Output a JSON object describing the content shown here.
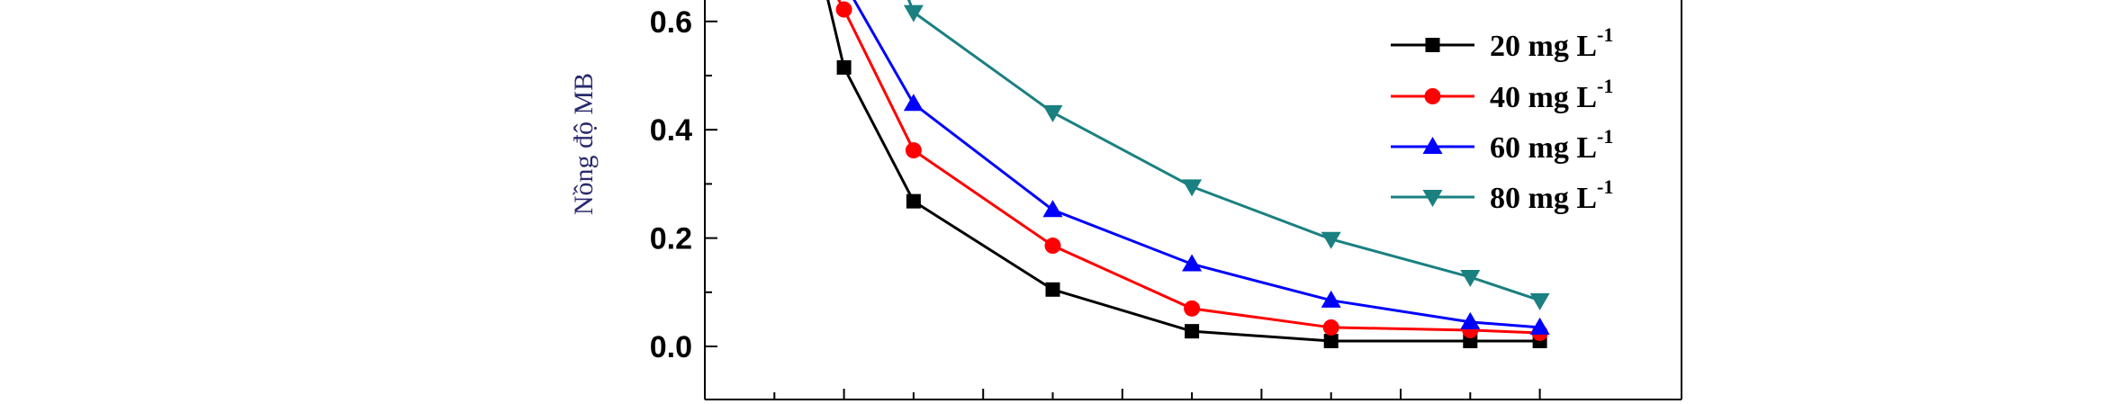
{
  "chart_data": {
    "type": "line",
    "ylabel": "Nồng độ MB",
    "xlabel": "",
    "x": [
      1,
      2,
      3,
      4,
      5,
      6,
      7,
      8,
      9,
      10,
      11,
      12,
      13
    ],
    "ylim": [
      -0.1,
      0.65
    ],
    "y_ticks": [
      "0.0",
      "0.2",
      "0.4",
      "0.6"
    ],
    "y_tick_values": [
      0.0,
      0.2,
      0.4,
      0.6
    ],
    "grid": false,
    "legend_position": "top-right",
    "series": [
      {
        "name": "20 mg L",
        "sup": "-1",
        "color": "#000000",
        "marker": "square",
        "x": [
          3,
          4,
          6,
          8,
          10,
          12,
          13
        ],
        "values": [
          0.515,
          0.268,
          0.105,
          0.028,
          0.01,
          0.01,
          0.01
        ],
        "start": [
          2.75,
          0.65
        ]
      },
      {
        "name": "40 mg L",
        "sup": "-1",
        "color": "#ff0000",
        "marker": "circle",
        "x": [
          3,
          4,
          6,
          8,
          10,
          12,
          13
        ],
        "values": [
          0.622,
          0.362,
          0.186,
          0.07,
          0.035,
          0.03,
          0.025
        ],
        "start": [
          2.88,
          0.65
        ]
      },
      {
        "name": "60 mg L",
        "sup": "-1",
        "color": "#0000ff",
        "marker": "triangle-up",
        "x": [
          4,
          6,
          8,
          10,
          12,
          13
        ],
        "values": [
          0.448,
          0.252,
          0.152,
          0.085,
          0.045,
          0.035
        ],
        "start": [
          3.1,
          0.65
        ]
      },
      {
        "name": "80 mg L",
        "sup": "-1",
        "color": "#1a8080",
        "marker": "triangle-down",
        "x": [
          4,
          6,
          8,
          10,
          12,
          13
        ],
        "values": [
          0.617,
          0.432,
          0.295,
          0.198,
          0.128,
          0.085
        ],
        "start": [
          3.9,
          0.65
        ]
      }
    ]
  }
}
